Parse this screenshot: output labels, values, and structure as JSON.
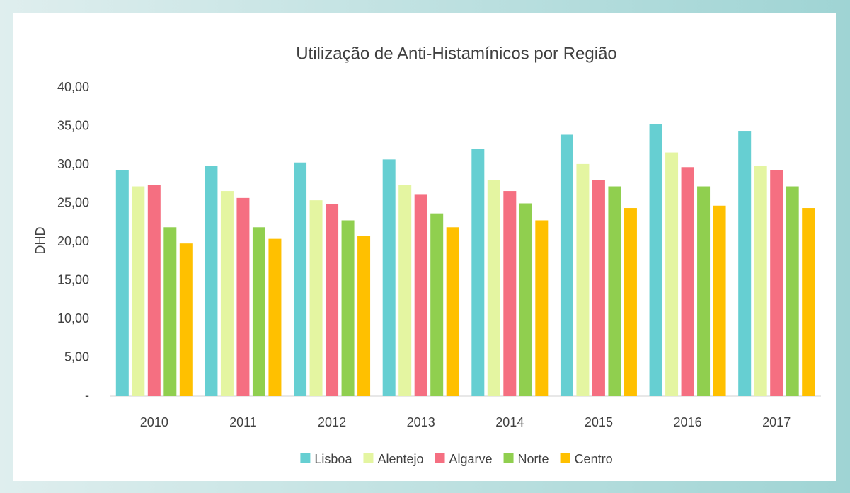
{
  "chart_data": {
    "type": "bar",
    "title": "Utilização de Anti-Histamínicos por Região",
    "y_label": "DHD",
    "categories": [
      "2010",
      "2011",
      "2012",
      "2013",
      "2014",
      "2015",
      "2016",
      "2017"
    ],
    "series": [
      {
        "name": "Lisboa",
        "color": "#66cfd2",
        "values": [
          29.3,
          29.9,
          30.3,
          30.7,
          32.1,
          33.9,
          35.3,
          34.4
        ]
      },
      {
        "name": "Alentejo",
        "color": "#e4f5a1",
        "values": [
          27.2,
          26.6,
          25.4,
          27.4,
          28.0,
          30.1,
          31.6,
          29.9
        ]
      },
      {
        "name": "Algarve",
        "color": "#f56f81",
        "values": [
          27.4,
          25.7,
          24.9,
          26.2,
          26.6,
          28.0,
          29.7,
          29.3
        ]
      },
      {
        "name": "Norte",
        "color": "#90cf4f",
        "values": [
          21.9,
          21.9,
          22.8,
          23.7,
          25.0,
          27.2,
          27.2,
          27.2
        ]
      },
      {
        "name": "Centro",
        "color": "#ffc000",
        "values": [
          19.8,
          20.4,
          20.8,
          21.9,
          22.8,
          24.4,
          24.7,
          24.4
        ]
      }
    ],
    "ylim": [
      0,
      40
    ],
    "yticks": [
      {
        "value": 0,
        "label": "-"
      },
      {
        "value": 5,
        "label": "5,00"
      },
      {
        "value": 10,
        "label": "10,00"
      },
      {
        "value": 15,
        "label": "15,00"
      },
      {
        "value": 20,
        "label": "20,00"
      },
      {
        "value": 25,
        "label": "25,00"
      },
      {
        "value": 30,
        "label": "30,00"
      },
      {
        "value": 35,
        "label": "35,00"
      },
      {
        "value": 40,
        "label": "40,00"
      }
    ],
    "grid": false,
    "legend": "bottom"
  }
}
